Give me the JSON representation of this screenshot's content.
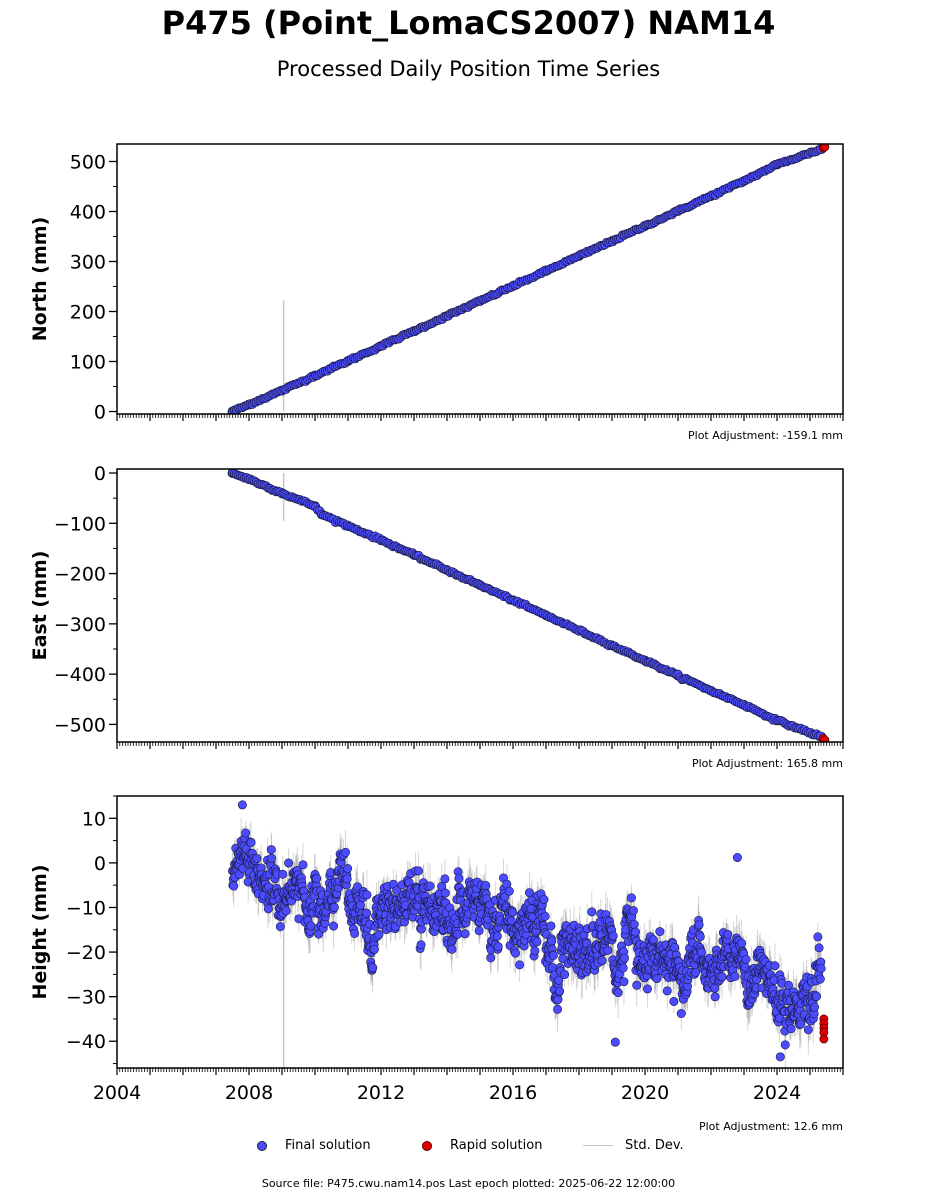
{
  "title": "P475 (Point_LomaCS2007) NAM14",
  "subtitle": "Processed Daily Position Time Series",
  "footer": "Source file: P475.cwu.nam14.pos  Last epoch plotted: 2025-06-22 12:00:00",
  "legend": {
    "final": "Final solution",
    "rapid": "Rapid solution",
    "std": "Std. Dev."
  },
  "colors": {
    "final": "#4b4bff",
    "rapid": "#e00000",
    "std": "#c8c8c8",
    "edge": "#1a1a40"
  },
  "chart_data": [
    {
      "type": "scatter",
      "ylabel": "North (mm)",
      "adjustment": "Plot Adjustment: -159.1 mm",
      "xlim": [
        2004,
        2026
      ],
      "ylim": [
        -5,
        535
      ],
      "yticks": [
        0,
        100,
        200,
        300,
        400,
        500
      ],
      "series": [
        {
          "kind": "final",
          "x": [
            2007.5,
            2008,
            2009,
            2010,
            2011,
            2012,
            2013,
            2014,
            2015,
            2016,
            2017,
            2018,
            2019,
            2020,
            2021,
            2022,
            2023,
            2024,
            2025.35
          ],
          "y": [
            0,
            14,
            42,
            72,
            101,
            131,
            161,
            191,
            221,
            251,
            281,
            311,
            341,
            371,
            401,
            431,
            461,
            494,
            525
          ]
        },
        {
          "kind": "rapid",
          "x": [
            2025.4,
            2025.45
          ],
          "y": [
            527,
            529
          ]
        }
      ],
      "outlier": {
        "x": 2009.05,
        "y_low": 0,
        "y_high": 222
      }
    },
    {
      "type": "scatter",
      "ylabel": "East (mm)",
      "adjustment": "Plot Adjustment: 165.8 mm",
      "xlim": [
        2004,
        2026
      ],
      "ylim": [
        -535,
        8
      ],
      "yticks": [
        0,
        -100,
        -200,
        -300,
        -400,
        -500
      ],
      "series": [
        {
          "kind": "final",
          "x": [
            2007.5,
            2008,
            2009,
            2010,
            2010.2,
            2011,
            2012,
            2013,
            2014,
            2015,
            2016,
            2017,
            2018,
            2019,
            2020,
            2021,
            2022,
            2023,
            2024,
            2025.35
          ],
          "y": [
            0,
            -12,
            -40,
            -66,
            -82,
            -105,
            -133,
            -163,
            -193,
            -223,
            -253,
            -283,
            -313,
            -343,
            -373,
            -403,
            -433,
            -461,
            -492,
            -525
          ]
        },
        {
          "kind": "rapid",
          "x": [
            2025.4,
            2025.45
          ],
          "y": [
            -528,
            -531
          ]
        }
      ],
      "outlier": {
        "x": 2009.05,
        "y_low": -95,
        "y_high": 0
      }
    },
    {
      "type": "scatter",
      "ylabel": "Height (mm)",
      "adjustment": "Plot Adjustment: 12.6 mm",
      "xlim": [
        2004,
        2026
      ],
      "ylim": [
        -46,
        15
      ],
      "yticks": [
        10,
        0,
        -10,
        -20,
        -30,
        -40
      ],
      "xticks": [
        2004,
        2008,
        2012,
        2016,
        2020,
        2024
      ],
      "trend": {
        "x": [
          2007.5,
          2010,
          2012,
          2014,
          2016,
          2018,
          2020,
          2022,
          2024,
          2025.35
        ],
        "y": [
          -3,
          -7,
          -9,
          -11,
          -14,
          -19,
          -23,
          -24,
          -28,
          -33
        ]
      },
      "scatter_sd": 5.5,
      "series": [
        {
          "kind": "rapid",
          "x": [
            2025.42,
            2025.42,
            2025.42,
            2025.42,
            2025.42
          ],
          "y": [
            -35,
            -36,
            -37,
            -38,
            -39.5
          ]
        }
      ],
      "outlier": {
        "x": 2009.05,
        "y_low": -46,
        "y_high": -5
      },
      "extra_points": {
        "x": [
          2007.8,
          2022.8,
          2019.1,
          2024.1
        ],
        "y": [
          13,
          1.2,
          -40.2,
          -43.5
        ]
      }
    }
  ]
}
